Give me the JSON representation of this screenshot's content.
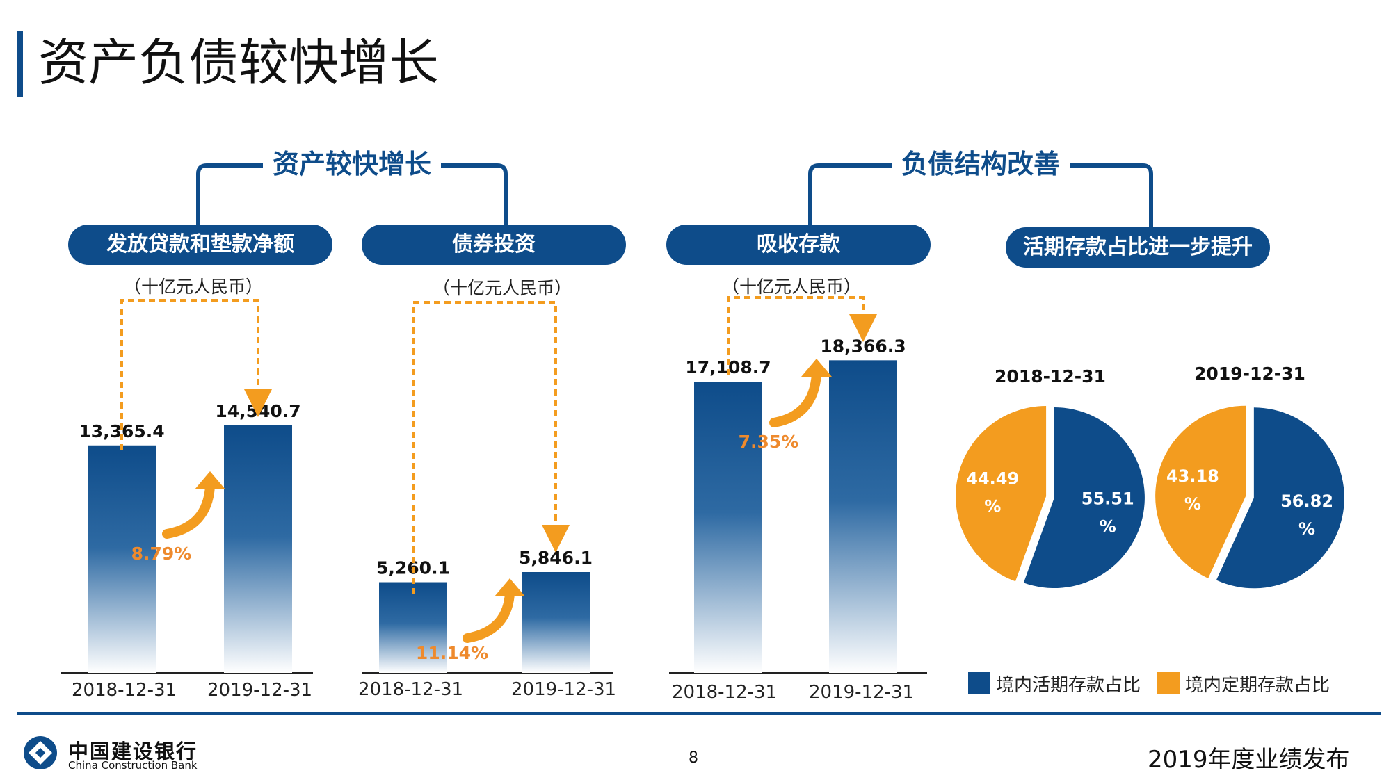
{
  "page": {
    "title": "资产负债较快增长",
    "page_number": "8",
    "event": "2019年度业绩发布",
    "bank_name_cn": "中国建设银行",
    "bank_name_en": "China Construction Bank"
  },
  "groups": {
    "assets": "资产较快增长",
    "liabilities": "负债结构改善"
  },
  "colors": {
    "primary": "#0e4c8a",
    "orange": "#f39c1f",
    "growth_text": "#ee8a2d"
  },
  "chart_data": [
    {
      "type": "bar",
      "title": "发放贷款和垫款净额",
      "unit": "（十亿元人民币）",
      "categories": [
        "2018-12-31",
        "2019-12-31"
      ],
      "values": [
        13365.4,
        14540.7
      ],
      "value_labels": [
        "13,365.4",
        "14,540.7"
      ],
      "growth": "8.79%"
    },
    {
      "type": "bar",
      "title": "债券投资",
      "unit": "（十亿元人民币）",
      "categories": [
        "2018-12-31",
        "2019-12-31"
      ],
      "values": [
        5260.1,
        5846.1
      ],
      "value_labels": [
        "5,260.1",
        "5,846.1"
      ],
      "growth": "11.14%"
    },
    {
      "type": "bar",
      "title": "吸收存款",
      "unit": "（十亿元人民币）",
      "categories": [
        "2018-12-31",
        "2019-12-31"
      ],
      "values": [
        17108.7,
        18366.3
      ],
      "value_labels": [
        "17,108.7",
        "18,366.3"
      ],
      "growth": "7.35%"
    },
    {
      "type": "pie",
      "title": "活期存款占比进一步提升",
      "legend": [
        "境内活期存款占比",
        "境内定期存款占比"
      ],
      "charts": [
        {
          "date": "2018-12-31",
          "slices": [
            {
              "name": "境内活期存款占比",
              "value": 55.51,
              "label": "55.51",
              "unit": "%"
            },
            {
              "name": "境内定期存款占比",
              "value": 44.49,
              "label": "44.49",
              "unit": "%"
            }
          ]
        },
        {
          "date": "2019-12-31",
          "slices": [
            {
              "name": "境内活期存款占比",
              "value": 56.82,
              "label": "56.82",
              "unit": "%"
            },
            {
              "name": "境内定期存款占比",
              "value": 43.18,
              "label": "43.18",
              "unit": "%"
            }
          ]
        }
      ]
    }
  ]
}
